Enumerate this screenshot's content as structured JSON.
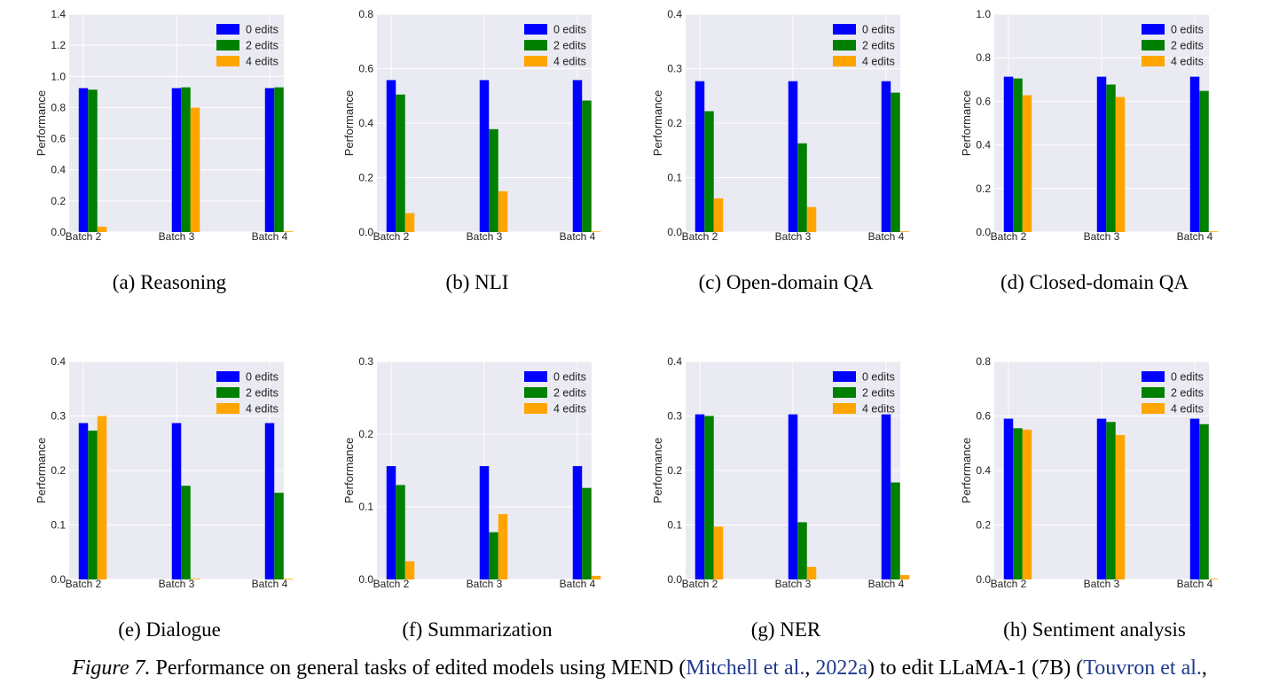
{
  "figure": {
    "label": "Figure 7.",
    "caption_parts": [
      "Performance on general tasks of edited models using MEND (",
      "Mitchell et al.",
      ", ",
      "2022a",
      ") to edit LLaMA-1 (7B) (",
      "Touvron et al.",
      ","
    ]
  },
  "colors": {
    "0 edits": "#0000ff",
    "2 edits": "#008000",
    "4 edits": "#ffa500",
    "plot_bg": "#eaeaf2",
    "grid": "#ffffff"
  },
  "chart_data": [
    {
      "type": "bar",
      "subcaption": "(a)  Reasoning",
      "categories": [
        "Batch 2",
        "Batch 3",
        "Batch 4"
      ],
      "ylabel": "Performance",
      "ylim": [
        0,
        1.4
      ],
      "yticks": [
        "0.0",
        "0.2",
        "0.4",
        "0.6",
        "0.8",
        "1.0",
        "1.2",
        "1.4"
      ],
      "legend": "top-right",
      "series": [
        {
          "name": "0 edits",
          "values": [
            0.925,
            0.925,
            0.925
          ]
        },
        {
          "name": "2 edits",
          "values": [
            0.915,
            0.93,
            0.93
          ]
        },
        {
          "name": "4 edits",
          "values": [
            0.035,
            0.8,
            0.005
          ]
        }
      ]
    },
    {
      "type": "bar",
      "subcaption": "(b)  NLI",
      "categories": [
        "Batch 2",
        "Batch 3",
        "Batch 4"
      ],
      "ylabel": "Performance",
      "ylim": [
        0,
        0.8
      ],
      "yticks": [
        "0.0",
        "0.2",
        "0.4",
        "0.6",
        "0.8"
      ],
      "legend": "top-right",
      "series": [
        {
          "name": "0 edits",
          "values": [
            0.558,
            0.558,
            0.558
          ]
        },
        {
          "name": "2 edits",
          "values": [
            0.505,
            0.378,
            0.483
          ]
        },
        {
          "name": "4 edits",
          "values": [
            0.07,
            0.15,
            0.002
          ]
        }
      ]
    },
    {
      "type": "bar",
      "subcaption": "(c)  Open-domain QA",
      "categories": [
        "Batch 2",
        "Batch 3",
        "Batch 4"
      ],
      "ylabel": "Performance",
      "ylim": [
        0,
        0.4
      ],
      "yticks": [
        "0.0",
        "0.1",
        "0.2",
        "0.3",
        "0.4"
      ],
      "legend": "top-right",
      "series": [
        {
          "name": "0 edits",
          "values": [
            0.277,
            0.277,
            0.277
          ]
        },
        {
          "name": "2 edits",
          "values": [
            0.222,
            0.163,
            0.256
          ]
        },
        {
          "name": "4 edits",
          "values": [
            0.062,
            0.046,
            0.001
          ]
        }
      ]
    },
    {
      "type": "bar",
      "subcaption": "(d)  Closed-domain QA",
      "categories": [
        "Batch 2",
        "Batch 3",
        "Batch 4"
      ],
      "ylabel": "Performance",
      "ylim": [
        0,
        1.0
      ],
      "yticks": [
        "0.0",
        "0.2",
        "0.4",
        "0.6",
        "0.8",
        "1.0"
      ],
      "legend": "top-right",
      "series": [
        {
          "name": "0 edits",
          "values": [
            0.713,
            0.713,
            0.713
          ]
        },
        {
          "name": "2 edits",
          "values": [
            0.705,
            0.677,
            0.648
          ]
        },
        {
          "name": "4 edits",
          "values": [
            0.628,
            0.62,
            0.003
          ]
        }
      ]
    },
    {
      "type": "bar",
      "subcaption": "(e)  Dialogue",
      "categories": [
        "Batch 2",
        "Batch 3",
        "Batch 4"
      ],
      "ylabel": "Performance",
      "ylim": [
        0,
        0.4
      ],
      "yticks": [
        "0.0",
        "0.1",
        "0.2",
        "0.3",
        "0.4"
      ],
      "legend": "top-right",
      "series": [
        {
          "name": "0 edits",
          "values": [
            0.287,
            0.287,
            0.287
          ]
        },
        {
          "name": "2 edits",
          "values": [
            0.273,
            0.172,
            0.159
          ]
        },
        {
          "name": "4 edits",
          "values": [
            0.3,
            0.001,
            0.001
          ]
        }
      ]
    },
    {
      "type": "bar",
      "subcaption": "(f)  Summarization",
      "categories": [
        "Batch 2",
        "Batch 3",
        "Batch 4"
      ],
      "ylabel": "Performance",
      "ylim": [
        0,
        0.3
      ],
      "yticks": [
        "0.0",
        "0.1",
        "0.2",
        "0.3"
      ],
      "legend": "top-right",
      "series": [
        {
          "name": "0 edits",
          "values": [
            0.156,
            0.156,
            0.156
          ]
        },
        {
          "name": "2 edits",
          "values": [
            0.13,
            0.065,
            0.126
          ]
        },
        {
          "name": "4 edits",
          "values": [
            0.025,
            0.09,
            0.005
          ]
        }
      ]
    },
    {
      "type": "bar",
      "subcaption": "(g)  NER",
      "categories": [
        "Batch 2",
        "Batch 3",
        "Batch 4"
      ],
      "ylabel": "Performance",
      "ylim": [
        0,
        0.4
      ],
      "yticks": [
        "0.0",
        "0.1",
        "0.2",
        "0.3",
        "0.4"
      ],
      "legend": "top-right",
      "series": [
        {
          "name": "0 edits",
          "values": [
            0.303,
            0.303,
            0.303
          ]
        },
        {
          "name": "2 edits",
          "values": [
            0.3,
            0.105,
            0.178
          ]
        },
        {
          "name": "4 edits",
          "values": [
            0.097,
            0.023,
            0.008
          ]
        }
      ]
    },
    {
      "type": "bar",
      "subcaption": "(h)  Sentiment analysis",
      "categories": [
        "Batch 2",
        "Batch 3",
        "Batch 4"
      ],
      "ylabel": "Performance",
      "ylim": [
        0,
        0.8
      ],
      "yticks": [
        "0.0",
        "0.2",
        "0.4",
        "0.6",
        "0.8"
      ],
      "legend": "top-right",
      "series": [
        {
          "name": "0 edits",
          "values": [
            0.59,
            0.59,
            0.59
          ]
        },
        {
          "name": "2 edits",
          "values": [
            0.555,
            0.578,
            0.57
          ]
        },
        {
          "name": "4 edits",
          "values": [
            0.55,
            0.53,
            0.002
          ]
        }
      ]
    }
  ]
}
